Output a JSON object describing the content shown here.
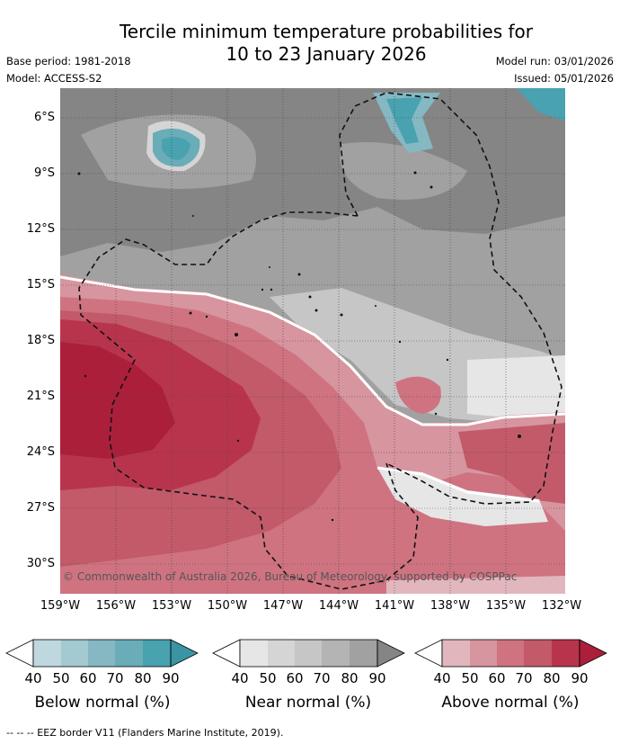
{
  "title_line1": "Tercile minimum temperature probabilities for",
  "title_line2": "10 to 23 January 2026",
  "base_period": "Base period: 1981-2018",
  "model": "Model: ACCESS-S2",
  "model_run": "Model run: 03/01/2026",
  "issued": "Issued: 05/01/2026",
  "latitudes": [
    "6°S",
    "9°S",
    "12°S",
    "15°S",
    "18°S",
    "21°S",
    "24°S",
    "27°S",
    "30°S"
  ],
  "longitudes": [
    "159°W",
    "156°W",
    "153°W",
    "150°W",
    "147°W",
    "144°W",
    "141°W",
    "138°W",
    "135°W",
    "132°W"
  ],
  "copyright": "© Commonwealth of Australia 2026, Bureau of Meteorology, supported by COSPPac",
  "legend": {
    "ticks": [
      "40",
      "50",
      "60",
      "70",
      "80",
      "90"
    ],
    "below": {
      "title": "Below normal (%)",
      "colors": [
        "#bfd7de",
        "#a3c9d1",
        "#85b8c3",
        "#6aacb8",
        "#48a2b0",
        "#3b94a3"
      ]
    },
    "near": {
      "title": "Near normal (%)",
      "colors": [
        "#e6e6e6",
        "#d5d5d5",
        "#c6c6c6",
        "#b4b4b4",
        "#a1a1a1",
        "#858585"
      ]
    },
    "above": {
      "title": "Above normal (%)",
      "colors": [
        "#e1b6bc",
        "#d7959f",
        "#cf7381",
        "#c25a6a",
        "#b8344d",
        "#ac1f3b"
      ]
    }
  },
  "footer": "--  --  -- EEZ border V11 (Flanders Marine Institute, 2019)."
}
